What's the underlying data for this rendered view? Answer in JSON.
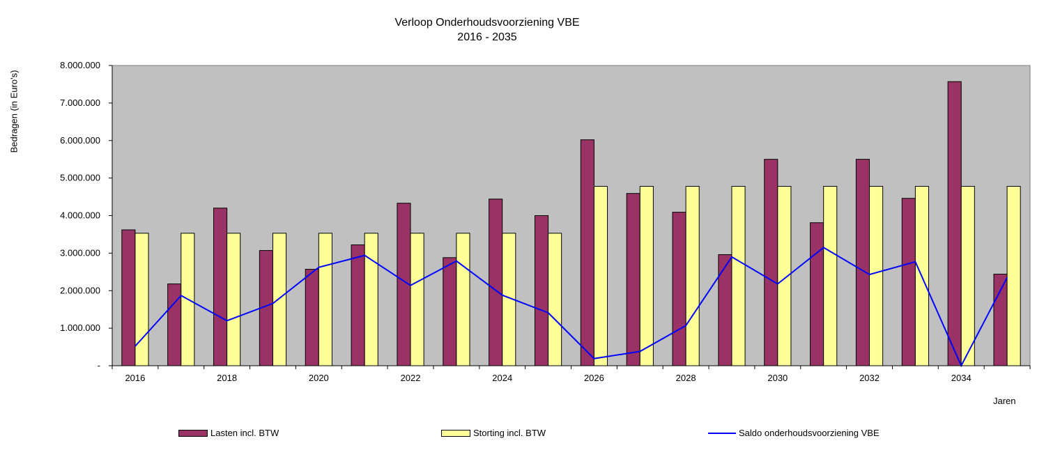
{
  "chart_data": {
    "type": "bar",
    "title": "Verloop Onderhoudsvoorziening VBE",
    "subtitle": "2016 - 2035",
    "ylabel": "Bedragen (in Euro's)",
    "xlabel": "Jaren",
    "ylim": [
      0,
      8000000
    ],
    "yticks": [
      "-",
      "1.000.000",
      "2.000.000",
      "3.000.000",
      "4.000.000",
      "5.000.000",
      "6.000.000",
      "7.000.000",
      "8.000.000"
    ],
    "categories": [
      "2016",
      "2017",
      "2018",
      "2019",
      "2020",
      "2021",
      "2022",
      "2023",
      "2024",
      "2025",
      "2026",
      "2027",
      "2028",
      "2029",
      "2030",
      "2031",
      "2032",
      "2033",
      "2034",
      "2035"
    ],
    "xtick_labels": [
      "2016",
      "2018",
      "2020",
      "2022",
      "2024",
      "2026",
      "2028",
      "2030",
      "2032",
      "2034"
    ],
    "grid": false,
    "legend_position": "bottom",
    "series": [
      {
        "name": "Lasten incl. BTW",
        "kind": "bar",
        "color": "#993366",
        "values": [
          3620000,
          2180000,
          4200000,
          3070000,
          2570000,
          3220000,
          4330000,
          2880000,
          4440000,
          4000000,
          6020000,
          4590000,
          4090000,
          2960000,
          5500000,
          3810000,
          5500000,
          4460000,
          7570000,
          2440000
        ]
      },
      {
        "name": "Storting incl. BTW",
        "kind": "bar",
        "color": "#ffff99",
        "values": [
          3530000,
          3530000,
          3530000,
          3530000,
          3530000,
          3530000,
          3530000,
          3530000,
          3530000,
          3530000,
          4780000,
          4780000,
          4780000,
          4780000,
          4780000,
          4780000,
          4780000,
          4780000,
          4780000,
          4780000
        ]
      },
      {
        "name": "Saldo onderhoudsvoorziening VBE",
        "kind": "line",
        "color": "#0000ff",
        "values": [
          520000,
          1870000,
          1200000,
          1660000,
          2620000,
          2940000,
          2140000,
          2790000,
          1880000,
          1410000,
          190000,
          380000,
          1070000,
          2900000,
          2180000,
          3150000,
          2430000,
          2770000,
          0,
          2350000
        ]
      }
    ],
    "plot_background": "#c0c0c0"
  }
}
